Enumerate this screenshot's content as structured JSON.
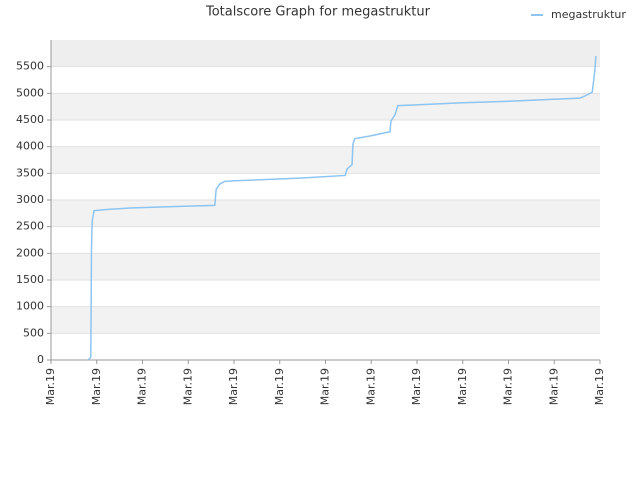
{
  "chart_data": {
    "type": "line",
    "title": "Totalscore Graph for megastruktur",
    "x": [
      0.81,
      0.87,
      0.885,
      0.9,
      0.94,
      1.18,
      1.73,
      2.82,
      3.58,
      3.61,
      3.69,
      3.8,
      4.02,
      5.44,
      6.43,
      6.47,
      6.58,
      6.6,
      6.64,
      6.97,
      7.41,
      7.43,
      7.52,
      7.58,
      7.85,
      8.94,
      10.25,
      11.56,
      11.67,
      11.83,
      11.87,
      11.89,
      11.91
    ],
    "series": [
      {
        "name": "megastruktur",
        "color": "#8cc4f2",
        "values": [
          0,
          50,
          2100,
          2600,
          2800,
          2820,
          2850,
          2880,
          2900,
          3200,
          3300,
          3350,
          3360,
          3410,
          3460,
          3580,
          3660,
          4050,
          4150,
          4200,
          4280,
          4480,
          4600,
          4770,
          4780,
          4820,
          4860,
          4910,
          4950,
          5020,
          5300,
          5450,
          5700
        ]
      }
    ],
    "xlim": [
      0,
      12
    ],
    "xticks": [
      {
        "value": 0,
        "label": "Mar.19"
      },
      {
        "value": 1,
        "label": "Mar.19"
      },
      {
        "value": 2,
        "label": "Mar.19"
      },
      {
        "value": 3,
        "label": "Mar.19"
      },
      {
        "value": 4,
        "label": "Mar.19"
      },
      {
        "value": 5,
        "label": "Mar.19"
      },
      {
        "value": 6,
        "label": "Mar.19"
      },
      {
        "value": 7,
        "label": "Mar.19"
      },
      {
        "value": 8,
        "label": "Mar.19"
      },
      {
        "value": 9,
        "label": "Mar.19"
      },
      {
        "value": 10,
        "label": "Mar.19"
      },
      {
        "value": 11,
        "label": "Mar.19"
      },
      {
        "value": 12,
        "label": "Mar.19"
      }
    ],
    "ylim": [
      0,
      6000
    ],
    "yticks": [
      0,
      500,
      1000,
      1500,
      2000,
      2500,
      3000,
      3500,
      4000,
      4500,
      5000,
      5500
    ],
    "grid": true,
    "legend": "top-right"
  }
}
